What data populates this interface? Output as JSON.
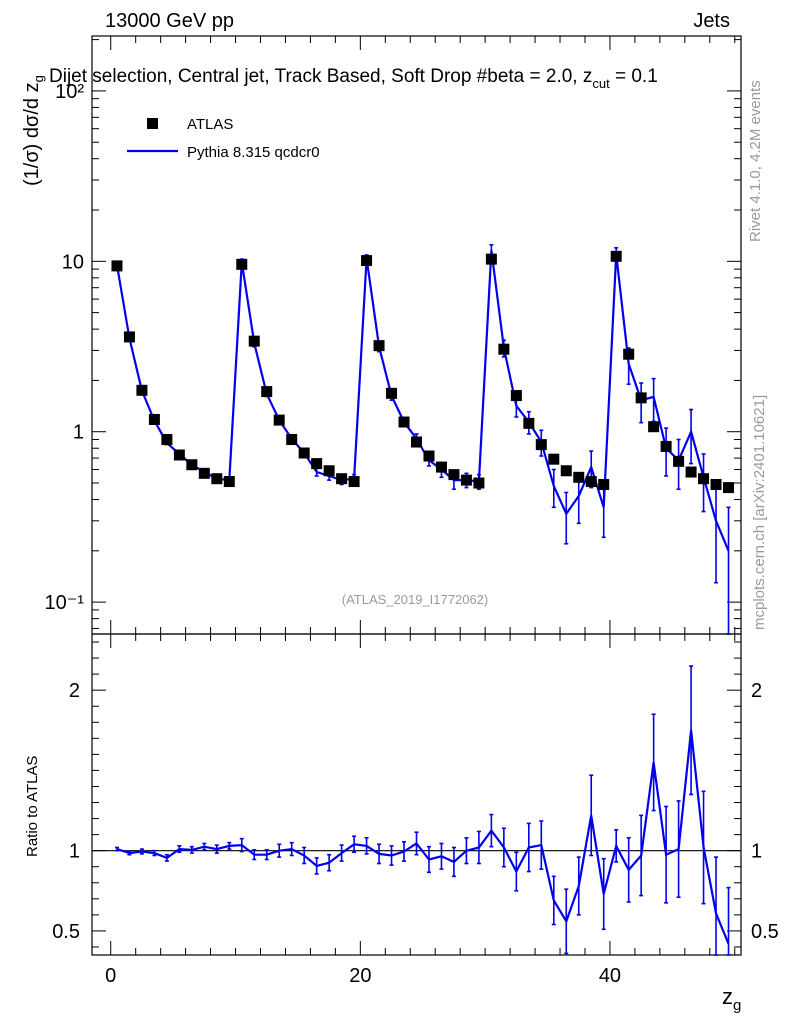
{
  "header": {
    "left": "13000 GeV pp",
    "right": "Jets"
  },
  "plot_title": "Dijet selection, Central jet, Track Based, Soft Drop #beta = 2.0, z_{cut} = 0.1",
  "side_labels": {
    "rivet": "Rivet 4.1.0,  4.2M events",
    "mcplots": "mcplots.cern.ch [arXiv:2401.10621]"
  },
  "analysis_tag": "(ATLAS_2019_I1772062)",
  "legend": {
    "data": "ATLAS",
    "mc": "Pythia 8.315 qcdcr0"
  },
  "colors": {
    "data": "#000000",
    "mc": "#0000ee",
    "grey_text": "#9a9a9a"
  },
  "chart_data": [
    {
      "type": "scatter",
      "title": "Dijet selection, Central jet, Track Based, Soft Drop #beta = 2.0, z_{cut} = 0.1",
      "xlabel": "z_g",
      "ylabel": "(1/σ) dσ/d z_g",
      "yscale": "log",
      "xlim": [
        -1.5,
        50.5
      ],
      "ylim": [
        0.065,
        210
      ],
      "yticks": [
        0.1,
        1,
        10,
        100
      ],
      "ytick_labels": [
        "10⁻¹",
        "1",
        "10",
        "10²"
      ],
      "series": [
        {
          "name": "ATLAS",
          "x": [
            0.5,
            1.5,
            2.5,
            3.5,
            4.5,
            5.5,
            6.5,
            7.5,
            8.5,
            9.5,
            10.5,
            11.5,
            12.5,
            13.5,
            14.5,
            15.5,
            16.5,
            17.5,
            18.5,
            19.5,
            20.5,
            21.5,
            22.5,
            23.5,
            24.5,
            25.5,
            26.5,
            27.5,
            28.5,
            29.5,
            30.5,
            31.5,
            32.5,
            33.5,
            34.5,
            35.5,
            36.5,
            37.5,
            38.5,
            39.5,
            40.5,
            41.5,
            42.5,
            43.5,
            44.5,
            45.5,
            46.5,
            47.5,
            48.5,
            49.5
          ],
          "values": [
            9.4,
            3.6,
            1.75,
            1.18,
            0.9,
            0.73,
            0.64,
            0.57,
            0.53,
            0.51,
            9.6,
            3.4,
            1.72,
            1.17,
            0.9,
            0.75,
            0.65,
            0.59,
            0.53,
            0.51,
            10.1,
            3.2,
            1.68,
            1.14,
            0.87,
            0.72,
            0.62,
            0.56,
            0.52,
            0.5,
            10.3,
            3.05,
            1.63,
            1.12,
            0.84,
            0.69,
            0.59,
            0.54,
            0.51,
            0.49,
            10.7,
            2.85,
            1.58,
            1.07,
            0.82,
            0.67,
            0.58,
            0.53,
            0.49,
            0.47
          ]
        },
        {
          "name": "Pythia 8.315 qcdcr0",
          "x": [
            0.5,
            1.5,
            2.5,
            3.5,
            4.5,
            5.5,
            6.5,
            7.5,
            8.5,
            9.5,
            10.5,
            11.5,
            12.5,
            13.5,
            14.5,
            15.5,
            16.5,
            17.5,
            18.5,
            19.5,
            20.5,
            21.5,
            22.5,
            23.5,
            24.5,
            25.5,
            26.5,
            27.5,
            28.5,
            29.5,
            30.5,
            31.5,
            32.5,
            33.5,
            34.5,
            35.5,
            36.5,
            37.5,
            38.5,
            39.5,
            40.5,
            41.5,
            42.5,
            43.5,
            44.5,
            45.5,
            46.5,
            47.5,
            48.5,
            49.5
          ],
          "values": [
            9.5,
            3.55,
            1.74,
            1.16,
            0.86,
            0.74,
            0.64,
            0.58,
            0.53,
            0.52,
            9.9,
            3.3,
            1.67,
            1.17,
            0.91,
            0.75,
            0.58,
            0.55,
            0.52,
            0.53,
            10.4,
            3.15,
            1.63,
            1.14,
            0.91,
            0.68,
            0.6,
            0.52,
            0.52,
            0.51,
            11.6,
            3.1,
            1.42,
            1.14,
            0.87,
            0.48,
            0.33,
            0.42,
            0.62,
            0.36,
            11.0,
            2.5,
            1.53,
            1.6,
            0.8,
            0.68,
            1.0,
            0.54,
            0.3,
            0.2
          ],
          "errors": [
            0.1,
            0.05,
            0.03,
            0.02,
            0.02,
            0.02,
            0.02,
            0.02,
            0.02,
            0.02,
            0.4,
            0.15,
            0.06,
            0.05,
            0.04,
            0.04,
            0.03,
            0.03,
            0.03,
            0.03,
            0.5,
            0.2,
            0.1,
            0.06,
            0.06,
            0.05,
            0.06,
            0.06,
            0.05,
            0.05,
            0.9,
            0.35,
            0.2,
            0.17,
            0.15,
            0.12,
            0.11,
            0.13,
            0.15,
            0.12,
            1.0,
            0.6,
            0.4,
            0.45,
            0.25,
            0.22,
            0.35,
            0.2,
            0.17,
            0.16
          ]
        }
      ]
    },
    {
      "type": "line",
      "title": "",
      "xlabel": "z_g",
      "ylabel": "Ratio to ATLAS",
      "xlim": [
        -1.5,
        50.5
      ],
      "ylim": [
        0.35,
        2.35
      ],
      "xticks": [
        0,
        20,
        40
      ],
      "yticks": [
        0.5,
        1,
        2
      ],
      "reference": 1,
      "x": [
        0.5,
        1.5,
        2.5,
        3.5,
        4.5,
        5.5,
        6.5,
        7.5,
        8.5,
        9.5,
        10.5,
        11.5,
        12.5,
        13.5,
        14.5,
        15.5,
        16.5,
        17.5,
        18.5,
        19.5,
        20.5,
        21.5,
        22.5,
        23.5,
        24.5,
        25.5,
        26.5,
        27.5,
        28.5,
        29.5,
        30.5,
        31.5,
        32.5,
        33.5,
        34.5,
        35.5,
        36.5,
        37.5,
        38.5,
        39.5,
        40.5,
        41.5,
        42.5,
        43.5,
        44.5,
        45.5,
        46.5,
        47.5,
        48.5,
        49.5
      ],
      "values": [
        1.01,
        0.985,
        0.995,
        0.985,
        0.955,
        1.01,
        1.005,
        1.025,
        1.01,
        1.03,
        1.035,
        0.975,
        0.975,
        1.0,
        1.01,
        0.97,
        0.905,
        0.925,
        0.985,
        1.04,
        1.03,
        0.98,
        0.97,
        0.995,
        1.045,
        0.945,
        0.965,
        0.93,
        1.0,
        1.02,
        1.125,
        1.02,
        0.87,
        1.02,
        1.035,
        0.69,
        0.56,
        0.78,
        1.22,
        0.73,
        1.03,
        0.88,
        0.97,
        1.55,
        0.975,
        1.01,
        1.75,
        1.02,
        0.61,
        0.42
      ],
      "errors": [
        0.01,
        0.01,
        0.015,
        0.015,
        0.02,
        0.02,
        0.02,
        0.02,
        0.025,
        0.02,
        0.04,
        0.03,
        0.03,
        0.04,
        0.04,
        0.05,
        0.05,
        0.05,
        0.05,
        0.05,
        0.05,
        0.06,
        0.06,
        0.06,
        0.07,
        0.08,
        0.08,
        0.09,
        0.08,
        0.1,
        0.1,
        0.12,
        0.12,
        0.15,
        0.15,
        0.15,
        0.2,
        0.18,
        0.25,
        0.22,
        0.1,
        0.2,
        0.25,
        0.3,
        0.3,
        0.3,
        0.4,
        0.35,
        0.35,
        0.35
      ]
    }
  ]
}
